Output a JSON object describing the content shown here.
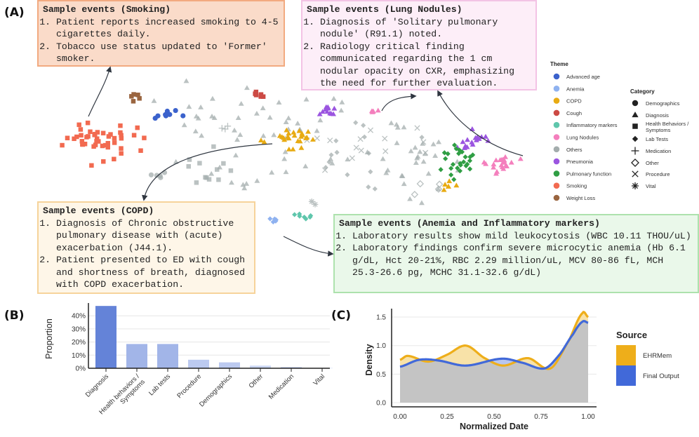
{
  "panels": {
    "a": "(A)",
    "b": "(B)",
    "c": "(C)"
  },
  "boxes": [
    {
      "id": "smoking",
      "title": "Sample events (Smoking)",
      "items": [
        "Patient reports increased smoking to 4-5 cigarettes daily.",
        "Tobacco use status updated to 'Former' smoker."
      ],
      "bg": "#fadbc9",
      "border": "#f2aa80"
    },
    {
      "id": "lung",
      "title": "Sample events (Lung Nodules)",
      "items": [
        "Diagnosis of 'Solitary pulmonary nodule' (R91.1) noted.",
        "Radiology critical finding communicated regarding the 1 cm nodular opacity on CXR, emphasizing the need for further evaluation."
      ],
      "bg": "#fdeef8",
      "border": "#f3c3e5"
    },
    {
      "id": "copd",
      "title": "Sample events (COPD)",
      "items": [
        "Diagnosis of Chronic obstructive pulmonary disease with (acute) exacerbation (J44.1).",
        "Patient presented to ED with cough and shortness of breath, diagnosed with COPD exacerbation."
      ],
      "bg": "#fef6e8",
      "border": "#f6d39a"
    },
    {
      "id": "anemia",
      "title": "Sample events (Anemia and Inflammatory markers)",
      "items": [
        "Laboratory results show mild leukocytosis (WBC 10.11 THOU/uL)",
        "Laboratory findings confirm severe microcytic anemia (Hb 6.1 g/dL, Hct 20-21%, RBC 2.29 million/uL, MCV 80-86 fL, MCH 25.3-26.6 pg, MCHC 31.1-32.6 g/dL)"
      ],
      "bg": "#eaf8ea",
      "border": "#ade2ad"
    }
  ],
  "chart_data": [
    {
      "type": "scatter",
      "title": "",
      "legend_theme": {
        "title": "Theme",
        "items": [
          {
            "label": "Advanced age",
            "color": "#3b62cc"
          },
          {
            "label": "Anemia",
            "color": "#8fb2f0"
          },
          {
            "label": "COPD",
            "color": "#e8ab12"
          },
          {
            "label": "Cough",
            "color": "#cc4a44"
          },
          {
            "label": "Inflammatory markers",
            "color": "#5fc6ac"
          },
          {
            "label": "Lung Nodules",
            "color": "#f47fbd"
          },
          {
            "label": "Others",
            "color": "#a4adad"
          },
          {
            "label": "Pneumonia",
            "color": "#9b55e0"
          },
          {
            "label": "Pulmonary function",
            "color": "#2f9e44"
          },
          {
            "label": "Smoking",
            "color": "#f26a50"
          },
          {
            "label": "Weight Loss",
            "color": "#9a6540"
          }
        ]
      },
      "legend_category": {
        "title": "Category",
        "items": [
          {
            "label": "Demographics",
            "shape": "circle"
          },
          {
            "label": "Diagnosis",
            "shape": "triangle"
          },
          {
            "label": "Health Behaviors / Symptoms",
            "shape": "square"
          },
          {
            "label": "Lab Tests",
            "shape": "diamond"
          },
          {
            "label": "Medication",
            "shape": "plus"
          },
          {
            "label": "Other",
            "shape": "open-diamond"
          },
          {
            "label": "Procedure",
            "shape": "x"
          },
          {
            "label": "Vital",
            "shape": "asterisk"
          }
        ]
      },
      "clusters": [
        {
          "theme": "Smoking",
          "shape": "square",
          "center": [
            -7.9,
            1.0
          ],
          "spread": [
            1.3,
            2.0
          ],
          "n": 45
        },
        {
          "theme": "Weight Loss",
          "shape": "square",
          "center": [
            -6.3,
            6.0
          ],
          "spread": [
            0.2,
            0.5
          ],
          "n": 5
        },
        {
          "theme": "Advanced age",
          "shape": "circle",
          "center": [
            -5.0,
            3.9
          ],
          "spread": [
            0.5,
            0.7
          ],
          "n": 8
        },
        {
          "theme": "Others",
          "shape": "triangle",
          "center": [
            -1.0,
            1.5
          ],
          "spread": [
            3.5,
            5.5
          ],
          "n": 55
        },
        {
          "theme": "Others",
          "shape": "triangle",
          "center": [
            5.0,
            -1.5
          ],
          "spread": [
            1.8,
            4.0
          ],
          "n": 30
        },
        {
          "theme": "Others",
          "shape": "square",
          "center": [
            -3.5,
            -2.5
          ],
          "spread": [
            1.2,
            2.5
          ],
          "n": 12
        },
        {
          "theme": "Others",
          "shape": "x",
          "center": [
            3.5,
            -0.5
          ],
          "spread": [
            2.5,
            4.0
          ],
          "n": 14
        },
        {
          "theme": "Others",
          "shape": "diamond",
          "center": [
            2.5,
            0.0
          ],
          "spread": [
            2.0,
            4.0
          ],
          "n": 14
        },
        {
          "theme": "Others",
          "shape": "circle",
          "center": [
            -5.4,
            -3.2
          ],
          "spread": [
            0.3,
            0.5
          ],
          "n": 5
        },
        {
          "theme": "Others",
          "shape": "plus",
          "center": [
            -2.7,
            2.6
          ],
          "spread": [
            0.3,
            0.3
          ],
          "n": 3
        },
        {
          "theme": "Others",
          "shape": "open-diamond",
          "center": [
            5.2,
            -4.5
          ],
          "spread": [
            1.0,
            1.5
          ],
          "n": 4
        },
        {
          "theme": "Others",
          "shape": "asterisk",
          "center": [
            1.0,
            -6.5
          ],
          "spread": [
            0.3,
            0.3
          ],
          "n": 2
        },
        {
          "theme": "Cough",
          "shape": "square",
          "center": [
            -1.4,
            6.3
          ],
          "spread": [
            0.4,
            0.6
          ],
          "n": 6
        },
        {
          "theme": "COPD",
          "shape": "triangle",
          "center": [
            -0.1,
            1.2
          ],
          "spread": [
            0.9,
            1.5
          ],
          "n": 25
        },
        {
          "theme": "COPD",
          "shape": "triangle",
          "center": [
            6.4,
            -4.8
          ],
          "spread": [
            0.5,
            0.8
          ],
          "n": 6
        },
        {
          "theme": "Pneumonia",
          "shape": "triangle",
          "center": [
            1.5,
            4.4
          ],
          "spread": [
            0.5,
            0.6
          ],
          "n": 12
        },
        {
          "theme": "Pneumonia",
          "shape": "triangle",
          "center": [
            7.5,
            1.0
          ],
          "spread": [
            0.6,
            1.2
          ],
          "n": 16
        },
        {
          "theme": "Lung Nodules",
          "shape": "triangle",
          "center": [
            8.6,
            -1.6
          ],
          "spread": [
            0.7,
            1.2
          ],
          "n": 22
        },
        {
          "theme": "Lung Nodules",
          "shape": "triangle",
          "center": [
            3.3,
            4.4
          ],
          "spread": [
            0.3,
            0.2
          ],
          "n": 5
        },
        {
          "theme": "Pulmonary function",
          "shape": "diamond",
          "center": [
            6.7,
            -1.6
          ],
          "spread": [
            0.8,
            1.8
          ],
          "n": 25
        },
        {
          "theme": "Anemia",
          "shape": "diamond",
          "center": [
            -0.6,
            -8.4
          ],
          "spread": [
            0.3,
            0.4
          ],
          "n": 5
        },
        {
          "theme": "Inflammatory markers",
          "shape": "diamond",
          "center": [
            0.5,
            -8.0
          ],
          "spread": [
            0.4,
            0.5
          ],
          "n": 7
        }
      ]
    },
    {
      "type": "bar",
      "title": "",
      "xlabel": "",
      "ylabel": "Proportion",
      "ylim": [
        0,
        50
      ],
      "yticks": [
        "0%",
        "10%",
        "20%",
        "30%",
        "40%"
      ],
      "categories": [
        "Diagnosis",
        "Health behaviors / Symptoms",
        "Lab tests",
        "Procedure",
        "Demographics",
        "Other",
        "Medication",
        "Vital"
      ],
      "values": [
        47.5,
        18.5,
        18.5,
        6.5,
        4.5,
        2.0,
        1.0,
        0.2
      ],
      "colors": [
        "#6483d8",
        "#a2b5e8",
        "#a2b5e8",
        "#bccaf0",
        "#bccaf0",
        "#ccd7f4",
        "#ccd7f4",
        "#ccd7f4"
      ]
    },
    {
      "type": "area",
      "title": "",
      "xlabel": "Normalized Date",
      "ylabel": "Density",
      "xlim": [
        0,
        1
      ],
      "ylim": [
        0,
        1.6
      ],
      "xticks": [
        "0.00",
        "0.25",
        "0.50",
        "0.75",
        "1.00"
      ],
      "yticks": [
        "0.0",
        "0.5",
        "1.0",
        "1.5"
      ],
      "legend": {
        "title": "Source",
        "position": "right"
      },
      "series": [
        {
          "name": "EHRMem",
          "color": "#eeae1a",
          "fill": "#f8e2a8",
          "x": [
            0,
            0.04,
            0.15,
            0.25,
            0.35,
            0.45,
            0.55,
            0.68,
            0.8,
            0.9,
            0.97,
            1.0
          ],
          "y": [
            0.75,
            0.82,
            0.72,
            0.84,
            1.0,
            0.78,
            0.65,
            0.78,
            0.6,
            1.1,
            1.57,
            1.5
          ]
        },
        {
          "name": "Final Output",
          "color": "#4169d9",
          "fill": "#b8c6ef",
          "x": [
            0,
            0.1,
            0.2,
            0.35,
            0.54,
            0.65,
            0.77,
            0.85,
            0.92,
            0.97,
            1.0
          ],
          "y": [
            0.63,
            0.75,
            0.74,
            0.65,
            0.77,
            0.7,
            0.6,
            0.85,
            1.2,
            1.42,
            1.4
          ]
        }
      ]
    }
  ]
}
